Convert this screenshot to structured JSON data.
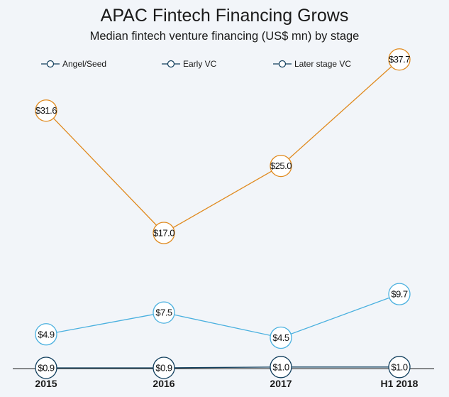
{
  "chart_data": {
    "type": "line",
    "title": "APAC Fintech Financing Grows",
    "subtitle": "Median fintech venture financing (US$ mn) by stage",
    "categories": [
      "2015",
      "2016",
      "2017",
      "H1 2018"
    ],
    "series": [
      {
        "name": "Angel/Seed",
        "values": [
          0.9,
          0.9,
          1.0,
          1.0
        ],
        "labels": [
          "$0.9",
          "$0.9",
          "$1.0",
          "$1.0"
        ],
        "color": "#0f3d5c"
      },
      {
        "name": "Early VC",
        "values": [
          4.9,
          7.5,
          4.5,
          9.7
        ],
        "labels": [
          "$4.9",
          "$7.5",
          "$4.5",
          "$9.7"
        ],
        "color": "#49b0df"
      },
      {
        "name": "Later stage VC",
        "values": [
          31.6,
          17.0,
          25.0,
          37.7
        ],
        "labels": [
          "$31.6",
          "$17.0",
          "$25.0",
          "$37.7"
        ],
        "color": "#e08a1e"
      }
    ],
    "legend_placement": "top",
    "grid": false
  }
}
